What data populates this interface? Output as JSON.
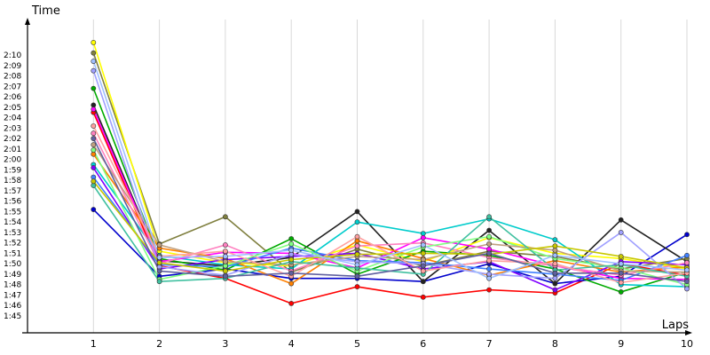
{
  "chart_data": {
    "type": "line",
    "title": "",
    "xlabel": "Laps",
    "ylabel": "Time",
    "x": [
      1,
      2,
      3,
      4,
      5,
      6,
      7,
      8,
      9,
      10
    ],
    "xlim": [
      0,
      10
    ],
    "ylim_seconds": [
      104,
      131
    ],
    "y_tick_labels": [
      "1:45",
      "1:46",
      "1:47",
      "1:48",
      "1:49",
      "1:50",
      "1:51",
      "1:52",
      "1:53",
      "1:54",
      "1:55",
      "1:56",
      "1:57",
      "1:58",
      "1:59",
      "2:00",
      "2:01",
      "2:02",
      "2:03",
      "2:04",
      "2:05",
      "2:06",
      "2:07",
      "2:08",
      "2:09",
      "2:10"
    ],
    "grid": true,
    "legend": "none",
    "y_unit": "lap time in seconds",
    "series": [
      {
        "color": "#ff0000",
        "values": [
          124.5,
          109.8,
          108.6,
          106.2,
          107.8,
          106.8,
          107.5,
          107.2,
          110.0,
          108.9
        ]
      },
      {
        "color": "#0000cc",
        "values": [
          115.2,
          108.8,
          109.5,
          108.6,
          108.6,
          108.3,
          110.0,
          108.1,
          108.8,
          112.8
        ]
      },
      {
        "color": "#222222",
        "values": [
          125.2,
          110.3,
          109.8,
          110.6,
          115.0,
          108.3,
          113.2,
          108.1,
          114.2,
          110.2
        ]
      },
      {
        "color": "#808040",
        "values": [
          130.2,
          111.9,
          114.5,
          109.2,
          111.4,
          109.8,
          111.2,
          110.7,
          109.5,
          110.5
        ]
      },
      {
        "color": "#ffff00",
        "values": [
          131.2,
          111.2,
          110.1,
          109.8,
          111.8,
          110.2,
          112.5,
          111.0,
          110.5,
          109.5
        ]
      },
      {
        "color": "#00aa00",
        "values": [
          126.8,
          110.5,
          109.4,
          112.4,
          109.0,
          111.2,
          110.8,
          109.5,
          107.3,
          109.2
        ]
      },
      {
        "color": "#00cccc",
        "values": [
          119.5,
          110.8,
          109.9,
          109.5,
          114.0,
          112.9,
          114.3,
          112.3,
          108.0,
          107.8
        ]
      },
      {
        "color": "#ff00ff",
        "values": [
          124.8,
          110.2,
          111.1,
          111.0,
          109.6,
          112.5,
          111.4,
          109.8,
          108.6,
          108.5
        ]
      },
      {
        "color": "#ff8000",
        "values": [
          120.5,
          111.5,
          110.5,
          108.1,
          112.2,
          110.5,
          108.9,
          110.3,
          109.2,
          109.7
        ]
      },
      {
        "color": "#8000ff",
        "values": [
          119.2,
          109.5,
          110.4,
          110.7,
          111.0,
          109.5,
          110.2,
          107.5,
          110.2,
          109.9
        ]
      },
      {
        "color": "#4080ff",
        "values": [
          118.3,
          109.9,
          109.7,
          111.5,
          110.3,
          110.1,
          109.5,
          109.0,
          108.4,
          110.8
        ]
      },
      {
        "color": "#ff80c0",
        "values": [
          122.5,
          110.0,
          111.8,
          109.3,
          111.7,
          112.0,
          110.6,
          109.8,
          108.9,
          110.1
        ]
      },
      {
        "color": "#80ff80",
        "values": [
          120.9,
          108.5,
          109.8,
          111.9,
          109.3,
          111.6,
          112.6,
          110.5,
          109.6,
          108.0
        ]
      },
      {
        "color": "#c0a080",
        "values": [
          121.4,
          111.8,
          110.2,
          109.9,
          110.7,
          110.4,
          111.9,
          111.3,
          109.3,
          109.2
        ]
      },
      {
        "color": "#40c0a0",
        "values": [
          117.5,
          108.3,
          108.6,
          110.2,
          109.6,
          109.0,
          114.5,
          109.4,
          109.9,
          108.8
        ]
      },
      {
        "color": "#a0a0ff",
        "values": [
          128.5,
          109.7,
          108.9,
          110.9,
          110.2,
          110.0,
          109.0,
          108.6,
          113.0,
          107.6
        ]
      },
      {
        "color": "#ffa0a0",
        "values": [
          123.2,
          110.7,
          111.2,
          108.8,
          112.6,
          109.3,
          110.3,
          110.0,
          108.2,
          109.1
        ]
      },
      {
        "color": "#c8c800",
        "values": [
          117.9,
          110.1,
          109.3,
          110.4,
          110.9,
          111.0,
          110.9,
          111.7,
          110.7,
          109.6
        ]
      },
      {
        "color": "#6060a0",
        "values": [
          122.0,
          109.3,
          108.8,
          109.1,
          108.8,
          109.8,
          111.0,
          109.1,
          109.1,
          108.3
        ]
      },
      {
        "color": "#a0c0ff",
        "values": [
          129.4,
          110.6,
          110.7,
          111.3,
          109.9,
          111.8,
          108.6,
          110.8,
          110.0,
          109.4
        ]
      }
    ]
  }
}
